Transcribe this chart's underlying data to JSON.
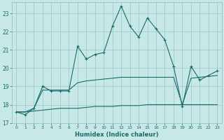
{
  "xlabel": "Humidex (Indice chaleur)",
  "xlim": [
    -0.5,
    23.5
  ],
  "ylim": [
    17,
    23.6
  ],
  "yticks": [
    17,
    18,
    19,
    20,
    21,
    22,
    23
  ],
  "xticks": [
    0,
    1,
    2,
    3,
    4,
    5,
    6,
    7,
    8,
    9,
    10,
    11,
    12,
    13,
    14,
    15,
    16,
    17,
    18,
    19,
    20,
    21,
    22,
    23
  ],
  "bg_color": "#c8e8e8",
  "grid_color": "#8bbcbc",
  "line_color": "#1a6b6b",
  "main_line": [
    17.6,
    17.45,
    17.8,
    19.0,
    18.75,
    18.75,
    18.75,
    21.2,
    20.5,
    20.75,
    20.85,
    22.3,
    23.4,
    22.3,
    21.7,
    22.75,
    22.15,
    21.55,
    20.1,
    17.9,
    20.1,
    19.35,
    19.6,
    19.85
  ],
  "low_line": [
    17.6,
    17.6,
    17.65,
    17.7,
    17.75,
    17.8,
    17.8,
    17.8,
    17.85,
    17.9,
    17.9,
    17.9,
    17.95,
    17.95,
    17.95,
    18.0,
    18.0,
    18.0,
    18.0,
    18.0,
    18.0,
    18.0,
    18.0,
    18.0
  ],
  "high_line": [
    17.6,
    17.6,
    17.8,
    18.8,
    18.8,
    18.8,
    18.8,
    19.2,
    19.3,
    19.35,
    19.4,
    19.45,
    19.5,
    19.5,
    19.5,
    19.5,
    19.5,
    19.5,
    19.5,
    18.0,
    19.45,
    19.5,
    19.55,
    19.6
  ]
}
